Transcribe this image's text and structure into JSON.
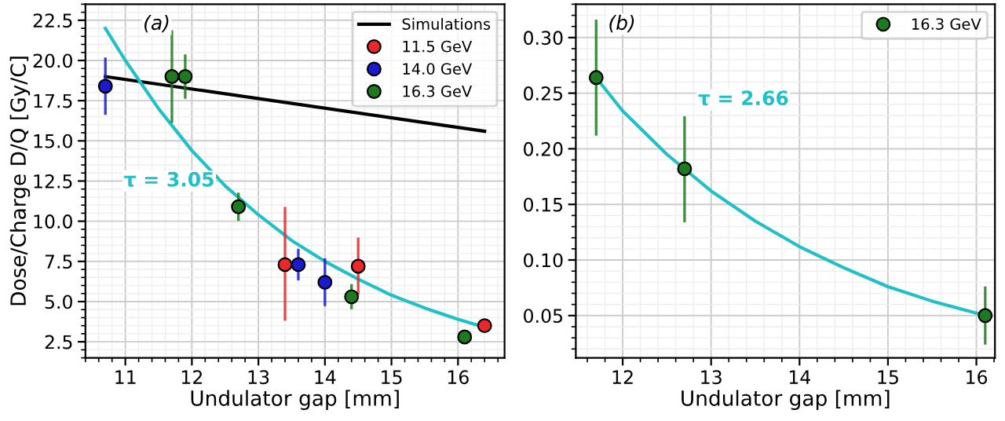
{
  "chart_data": [
    {
      "type": "scatter",
      "xlabel": "Undulator gap [mm]",
      "ylabel": "Dose/Charge D/Q [Gy/C]",
      "annotations": [
        "(a)",
        "τ = 3.05"
      ],
      "xlim": [
        10.4,
        16.7
      ],
      "xticks": [
        11,
        12,
        13,
        14,
        15,
        16
      ],
      "ylim": [
        1.5,
        23.5
      ],
      "yticks": [
        2.5,
        {
          "value": 5,
          "label": "5.0"
        },
        7.5,
        {
          "value": 10,
          "label": "10.0"
        },
        12.5,
        {
          "value": 15,
          "label": "15.0"
        },
        17.5,
        {
          "value": 20,
          "label": "20.0"
        },
        22.5
      ],
      "grid": true,
      "legend": "top right",
      "series": [
        {
          "type": "line",
          "name": "Simulations",
          "color": "#000000",
          "x": [
            10.7,
            16.4
          ],
          "values": [
            19.0,
            15.6
          ]
        },
        {
          "type": "line",
          "color": "#1fc0c8",
          "x": [
            10.7,
            11.0,
            11.5,
            12.0,
            12.5,
            13.0,
            13.5,
            14.0,
            14.5,
            15.0,
            15.5,
            16.0,
            16.4
          ],
          "values": [
            22.0,
            20.0,
            17.0,
            14.4,
            12.2,
            10.4,
            8.8,
            7.5,
            6.4,
            5.4,
            4.6,
            3.9,
            3.4
          ]
        },
        {
          "name": "11.5 GeV",
          "marker": "circle",
          "color": "#e8282b",
          "x": [
            13.4,
            14.5,
            16.4
          ],
          "values": [
            7.3,
            7.2,
            3.5
          ],
          "errors": [
            [
              3.9,
              10.8
            ],
            [
              5.5,
              8.9
            ],
            null
          ]
        },
        {
          "name": "14.0 GeV",
          "marker": "circle",
          "color": "#1a1ad0",
          "x": [
            10.7,
            13.6,
            14.0
          ],
          "values": [
            18.4,
            7.3,
            6.2
          ],
          "errors": [
            [
              16.7,
              20.1
            ],
            [
              6.4,
              8.2
            ],
            [
              4.8,
              7.6
            ]
          ]
        },
        {
          "name": "16.3 GeV",
          "marker": "circle",
          "color": "#1e7a1e",
          "x": [
            11.7,
            11.9,
            12.7,
            14.4,
            16.1
          ],
          "values": [
            19.0,
            19.0,
            10.9,
            5.3,
            2.8
          ],
          "errors": [
            [
              16.2,
              21.8
            ],
            [
              17.7,
              20.3
            ],
            [
              10.1,
              11.7
            ],
            [
              4.6,
              6.0
            ],
            null
          ]
        }
      ]
    },
    {
      "type": "scatter",
      "xlabel": "Undulator gap [mm]",
      "annotations": [
        "(b)",
        "τ = 2.66"
      ],
      "xlim": [
        11.47,
        16.21
      ],
      "xticks": [
        12,
        13,
        14,
        15,
        16
      ],
      "ylim": [
        0.012,
        0.33
      ],
      "yticks": [
        0.05,
        {
          "value": 0.1,
          "label": "0.10"
        },
        0.15,
        {
          "value": 0.2,
          "label": "0.20"
        },
        0.25,
        {
          "value": 0.3,
          "label": "0.30"
        }
      ],
      "grid": true,
      "legend": "top right",
      "series": [
        {
          "type": "line",
          "color": "#1fc0c8",
          "x": [
            11.7,
            12.0,
            12.5,
            13.0,
            13.5,
            14.0,
            14.5,
            15.0,
            15.5,
            16.1
          ],
          "values": [
            0.264,
            0.234,
            0.195,
            0.162,
            0.135,
            0.112,
            0.093,
            0.076,
            0.063,
            0.05
          ]
        },
        {
          "name": "16.3 GeV",
          "marker": "circle",
          "color": "#1e7a1e",
          "x": [
            11.7,
            12.7,
            16.1
          ],
          "values": [
            0.264,
            0.182,
            0.05
          ],
          "errors": [
            [
              0.213,
              0.315
            ],
            [
              0.135,
              0.228
            ],
            [
              0.025,
              0.075
            ]
          ]
        }
      ]
    }
  ]
}
